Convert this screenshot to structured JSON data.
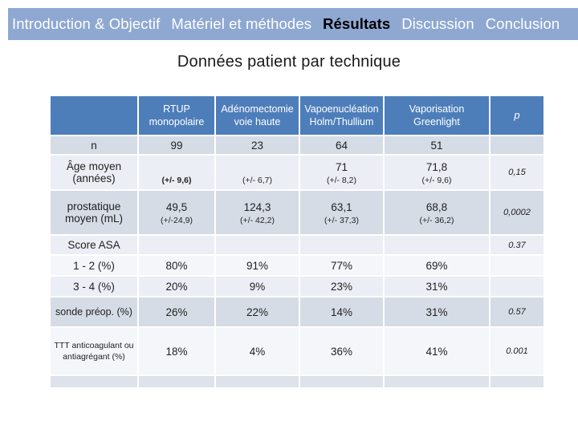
{
  "nav": {
    "items": [
      {
        "label": "Introduction & Objectif",
        "active": false
      },
      {
        "label": "Matériel et méthodes",
        "active": false
      },
      {
        "label": "Résultats",
        "active": true
      },
      {
        "label": "Discussion",
        "active": false
      },
      {
        "label": "Conclusion",
        "active": false
      }
    ]
  },
  "title": "Données patient par technique",
  "colors": {
    "nav_bg": "#8EA8D2",
    "header_bg": "#4D7EBA",
    "band_dark": "#D6DCE6",
    "band_light": "#EBEEF4",
    "band_lighter": "#F4F6FA",
    "band_mid": "#DDE2EB",
    "text": "#1F1F1F"
  },
  "table": {
    "headers": [
      "",
      "RTUP monopolaire",
      "Adénomectomie voie haute",
      "Vapoenucléation Holm/Thullium",
      "Vaporisation Greenlight",
      "p"
    ],
    "rows": [
      {
        "label": "n",
        "cells": [
          "99",
          "23",
          "64",
          "51"
        ],
        "p": ""
      },
      {
        "label": "Âge moyen (années)",
        "cells": [
          {
            "main": "",
            "sub": "(+/- 9,6)"
          },
          {
            "main": "",
            "sub": "(+/- 6,7)"
          },
          {
            "main": "71",
            "sub": "(+/- 8,2)"
          },
          {
            "main": "71,8",
            "sub": "(+/- 9,6)"
          }
        ],
        "p": "0,15"
      },
      {
        "label": "prostatique moyen (mL)",
        "cells": [
          {
            "main": "49,5",
            "sub": "(+/-24,9)"
          },
          {
            "main": "124,3",
            "sub": "(+/- 42,2)"
          },
          {
            "main": "63,1",
            "sub": "(+/- 37,3)"
          },
          {
            "main": "68,8",
            "sub": "(+/- 36,2)"
          }
        ],
        "p": "0,0002"
      },
      {
        "label": "Score ASA",
        "cells": [
          "",
          "",
          "",
          ""
        ],
        "p": "0.37"
      },
      {
        "label": "1 - 2 (%)",
        "cells": [
          "80%",
          "91%",
          "77%",
          "69%"
        ],
        "p": ""
      },
      {
        "label": "3 - 4 (%)",
        "cells": [
          "20%",
          "9%",
          "23%",
          "31%"
        ],
        "p": ""
      },
      {
        "label": "sonde préop. (%)",
        "cells": [
          "26%",
          "22%",
          "14%",
          "31%"
        ],
        "p": "0.57"
      },
      {
        "label": "TTT anticoagulant ou antiagrégant  (%)",
        "cells": [
          "18%",
          "4%",
          "36%",
          "41%"
        ],
        "p": "0.001"
      }
    ]
  }
}
